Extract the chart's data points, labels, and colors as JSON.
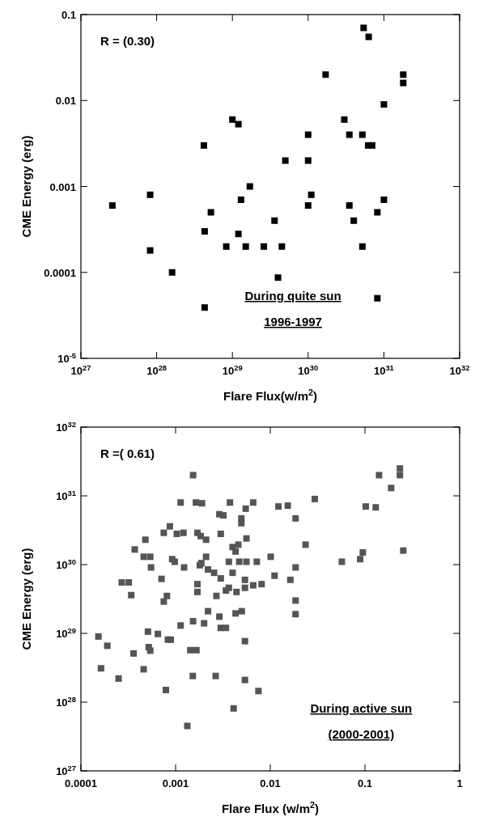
{
  "chart_data": [
    {
      "type": "scatter",
      "xlabel": "Flare Flux(w/m$^{2}$)",
      "ylabel": "CME Energy (erg)",
      "annotations": [
        "R = (0.30)",
        "During quite sun",
        "1996-1997"
      ],
      "color": "#000000",
      "marker": "square",
      "log": "xy",
      "xlim": [
        1e+27,
        1e+32
      ],
      "ylim": [
        1e-05,
        0.1
      ],
      "xticks": [
        {
          "value": 1e+27,
          "label": "10$^{27}$"
        },
        {
          "value": 1e+28,
          "label": "10$^{28}$"
        },
        {
          "value": 1e+29,
          "label": "10$^{29}$"
        },
        {
          "value": 1e+30,
          "label": "10$^{30}$"
        },
        {
          "value": 1e+31,
          "label": "10$^{31}$"
        },
        {
          "value": 1e+32,
          "label": "10$^{32}$"
        }
      ],
      "yticks": [
        {
          "value": 1e-05,
          "label": "10$^{-5}$"
        },
        0.0001,
        0.001,
        0.01,
        0.1
      ],
      "x": [
        5.4e+30,
        6.3e+30,
        1.7e+30,
        1.8e+31,
        1.8e+31,
        1e+31,
        1e+29,
        1.2e+29,
        3e+30,
        1e+30,
        3.5e+30,
        5.2e+30,
        6.2e+30,
        7e+30,
        4.2e+28,
        5e+29,
        1e+30,
        1.7e+29,
        8.2e+27,
        1.1e+30,
        2.6e+27,
        1.3e+29,
        1e+30,
        3.5e+30,
        1e+31,
        5.2e+28,
        8.2e+30,
        3.6e+29,
        4e+30,
        4.3e+28,
        1.2e+29,
        8.2e+27,
        8.3e+28,
        1.5e+29,
        2.6e+29,
        4.5e+29,
        5.2e+30,
        1.6e+28,
        4e+29,
        8.2e+30,
        4.3e+28
      ],
      "values": [
        0.07,
        0.055,
        0.02,
        0.02,
        0.016,
        0.009,
        0.006,
        0.0053,
        0.006,
        0.004,
        0.004,
        0.004,
        0.003,
        0.003,
        0.003,
        0.002,
        0.002,
        0.001,
        0.0008,
        0.0008,
        0.0006,
        0.0007,
        0.0006,
        0.0006,
        0.0007,
        0.0005,
        0.0005,
        0.0004,
        0.0004,
        0.0003,
        0.00028,
        0.00018,
        0.0002,
        0.0002,
        0.0002,
        0.0002,
        0.0002,
        0.0001,
        8.7e-05,
        5e-05,
        3.9e-05
      ]
    },
    {
      "type": "scatter",
      "xlabel": "Flare Flux (w/m$^{2}$)",
      "ylabel": "CME Energy (erg)",
      "annotations": [
        "R =( 0.61)",
        "During active sun",
        "(2000-2001)"
      ],
      "color": "#555555",
      "marker": "square",
      "log": "xy",
      "xlim": [
        0.0001,
        1
      ],
      "ylim": [
        1e+27,
        1e+32
      ],
      "xticks": [
        0.0001,
        0.001,
        0.01,
        0.1,
        1
      ],
      "yticks": [
        {
          "value": 1e+27,
          "label": "10$^{27}$"
        },
        {
          "value": 1e+28,
          "label": "10$^{28}$"
        },
        {
          "value": 1e+29,
          "label": "10$^{29}$"
        },
        {
          "value": 1e+30,
          "label": "10$^{30}$"
        },
        {
          "value": 1e+31,
          "label": "10$^{31}$"
        },
        {
          "value": 1e+32,
          "label": "10$^{32}$"
        }
      ],
      "x": [
        0.00153,
        0.141,
        0.234,
        0.234,
        0.189,
        0.0295,
        0.00113,
        0.00164,
        0.0019,
        0.00375,
        0.0066,
        0.0055,
        0.0122,
        0.0153,
        0.102,
        0.13,
        0.0029,
        0.0032,
        0.00495,
        0.00495,
        0.0185,
        0.00087,
        0.00075,
        0.00103,
        0.00121,
        0.0017,
        0.00184,
        0.0021,
        0.003,
        0.0056,
        0.00048,
        0.0236,
        0.00037,
        0.004,
        0.0046,
        0.0043,
        0.00046,
        0.00054,
        0.254,
        0.095,
        0.089,
        0.0021,
        0.0101,
        0.00092,
        0.00098,
        0.00365,
        0.0047,
        0.0056,
        0.0072,
        0.057,
        0.00187,
        0.0018,
        0.00055,
        0.00123,
        0.0185,
        0.0022,
        0.00255,
        0.00071,
        0.004,
        0.003,
        0.0111,
        0.0054,
        0.0163,
        0.00027,
        0.00032,
        0.0017,
        0.0017,
        0.00365,
        0.0034,
        0.0044,
        0.0054,
        0.0066,
        0.0081,
        0.00034,
        0.0027,
        0.00075,
        0.00081,
        0.0185,
        0.0185,
        0.0022,
        0.0029,
        0.0043,
        0.005,
        0.00113,
        0.00153,
        0.002,
        0.003,
        0.0034,
        0.000153,
        0.00051,
        0.00065,
        0.00083,
        0.00089,
        0.0054,
        0.00019,
        0.00036,
        0.00052,
        0.00054,
        0.00143,
        0.00166,
        0.000163,
        0.00046,
        0.00025,
        0.00152,
        0.00265,
        0.0054,
        0.00079,
        0.0075,
        0.0041,
        0.00133
      ],
      "values": [
        2e+31,
        2e+31,
        2.5e+31,
        2e+31,
        1.3e+31,
        9e+30,
        8e+30,
        8e+30,
        7.8e+30,
        8e+30,
        8e+30,
        6.5e+30,
        7e+30,
        7.2e+30,
        7e+30,
        6.8e+30,
        5.4e+30,
        5.2e+30,
        4.7e+30,
        4e+30,
        4.7e+30,
        3.6e+30,
        2.9e+30,
        2.8e+30,
        2.9e+30,
        2.9e+30,
        2.6e+30,
        2.3e+30,
        2.8e+30,
        2.4e+30,
        2.3e+30,
        1.95e+30,
        1.66e+30,
        1.8e+30,
        1.95e+30,
        1.55e+30,
        1.3e+30,
        1.3e+30,
        1.6e+30,
        1.5e+30,
        1.2e+30,
        1.3e+30,
        1.3e+30,
        1.2e+30,
        1.1e+30,
        1.1e+30,
        1.1e+30,
        1.1e+30,
        1.1e+30,
        1.1e+30,
        1.05e+30,
        9.8e+29,
        9.1e+29,
        9.1e+29,
        9.1e+29,
        8.5e+29,
        7.6e+29,
        6.2e+29,
        7.6e+29,
        6.3e+29,
        6.9e+29,
        6e+29,
        6e+29,
        5.5e+29,
        5.5e+29,
        5.2e+29,
        4e+29,
        4.6e+29,
        4.2e+29,
        4e+29,
        4.6e+29,
        5e+29,
        5.2e+29,
        3.6e+29,
        3.5e+29,
        2.9e+29,
        3.5e+29,
        3e+29,
        1.9e+29,
        2.1e+29,
        1.75e+29,
        1.95e+29,
        2.1e+29,
        1.3e+29,
        1.5e+29,
        1.4e+29,
        1.2e+29,
        1.2e+29,
        9e+28,
        1.06e+29,
        9.8e+28,
        8.1e+28,
        8.1e+28,
        7.7e+28,
        6.6e+28,
        5.1e+28,
        6.3e+28,
        5.6e+28,
        5.7e+28,
        5.7e+28,
        3.1e+28,
        3e+28,
        2.2e+28,
        2.4e+28,
        2.4e+28,
        2.1e+28,
        1.5e+28,
        1.45e+28,
        8.1e+27,
        4.5e+27
      ]
    }
  ]
}
